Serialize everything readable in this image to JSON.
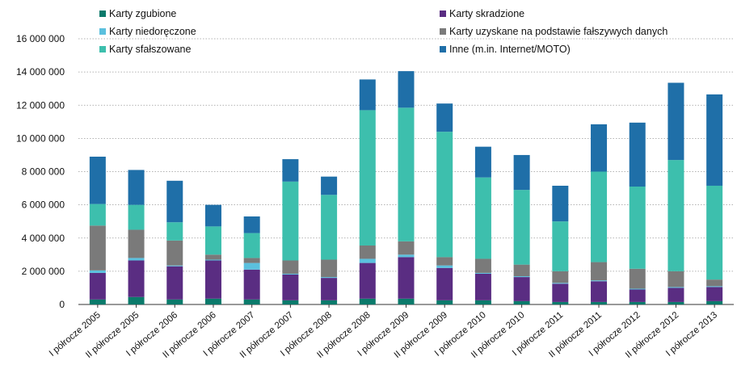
{
  "chart_data": {
    "type": "bar",
    "stacked": true,
    "categories": [
      "I półrocze 2005",
      "II półrocze 2005",
      "I półrocze 2006",
      "II półrocze 2006",
      "I półrocze 2007",
      "II półrocze 2007",
      "I półrocze 2008",
      "II półrocze 2008",
      "I półrocze 2009",
      "II półrocze 2009",
      "I półrocze 2010",
      "II półrocze 2010",
      "I półrocze 2011",
      "II półrocze 2011",
      "I półrocze 2012",
      "II półrocze 2012",
      "I półrocze 2013"
    ],
    "ylim": [
      0,
      16000000
    ],
    "yticks": [
      0,
      2000000,
      4000000,
      6000000,
      8000000,
      10000000,
      12000000,
      14000000,
      16000000
    ],
    "ytick_labels": [
      "0",
      "2 000 000",
      "4 000 000",
      "6 000 000",
      "8 000 000",
      "10 000 000",
      "12 000 000",
      "14 000 000",
      "16 000 000"
    ],
    "grid": "horizontal dotted",
    "legend_position": "top",
    "series": [
      {
        "name": "Karty zgubione",
        "color": "#0b7a6b",
        "values": [
          300000,
          450000,
          300000,
          350000,
          300000,
          250000,
          250000,
          350000,
          350000,
          250000,
          250000,
          200000,
          150000,
          150000,
          150000,
          150000,
          200000
        ]
      },
      {
        "name": "Karty skradzione",
        "color": "#5a2d82",
        "values": [
          1600000,
          2200000,
          2000000,
          2300000,
          1800000,
          1550000,
          1350000,
          2150000,
          2500000,
          1950000,
          1600000,
          1450000,
          1100000,
          1250000,
          750000,
          850000,
          850000
        ]
      },
      {
        "name": "Karty niedoręczone",
        "color": "#5bc0de",
        "values": [
          150000,
          150000,
          50000,
          50000,
          400000,
          50000,
          50000,
          250000,
          150000,
          150000,
          50000,
          50000,
          50000,
          50000,
          50000,
          50000,
          50000
        ]
      },
      {
        "name": "Karty uzyskane na podstawie fałszywych danych",
        "color": "#7a7a7a",
        "values": [
          2700000,
          1700000,
          1500000,
          300000,
          300000,
          800000,
          1050000,
          800000,
          800000,
          500000,
          850000,
          700000,
          700000,
          1100000,
          1200000,
          950000,
          400000
        ]
      },
      {
        "name": "Karty sfałszowane",
        "color": "#3dbfad",
        "values": [
          1300000,
          1500000,
          1100000,
          1700000,
          1500000,
          4750000,
          3900000,
          8150000,
          8050000,
          7550000,
          4900000,
          4500000,
          3000000,
          5450000,
          4950000,
          6700000,
          5650000
        ]
      },
      {
        "name": "Inne (m.in. Internet/MOTO)",
        "color": "#1f6fa8",
        "values": [
          2850000,
          2100000,
          2500000,
          1300000,
          1000000,
          1350000,
          1100000,
          1850000,
          2200000,
          1700000,
          1850000,
          2100000,
          2150000,
          2850000,
          3850000,
          4650000,
          5500000
        ]
      }
    ]
  }
}
